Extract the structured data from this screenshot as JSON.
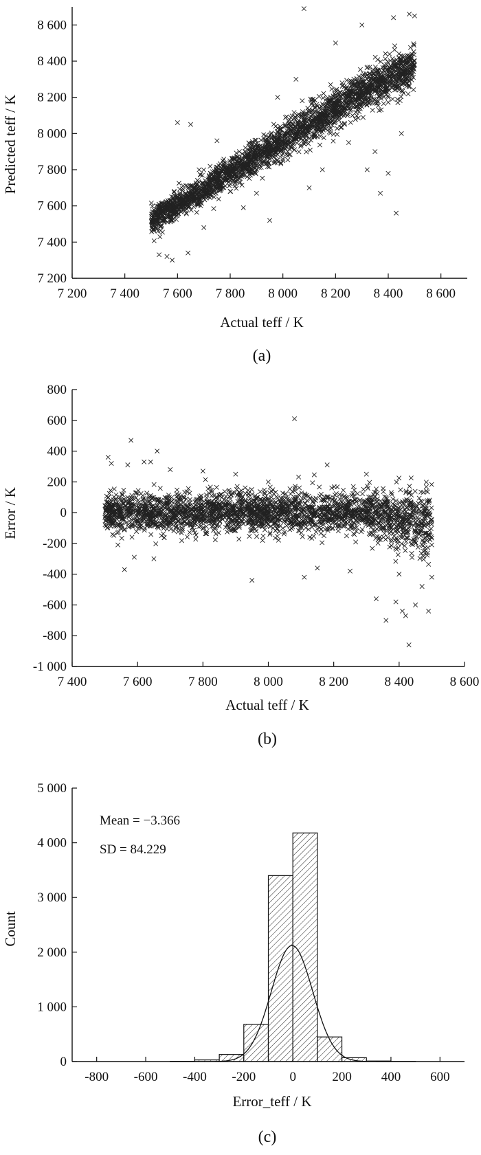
{
  "chart_data": [
    {
      "panel": "(a)",
      "type": "scatter",
      "xlabel": "Actual teff / K",
      "ylabel": "Predicted teff / K",
      "xlim": [
        7200,
        8700
      ],
      "ylim": [
        7200,
        8700
      ],
      "xticks": [
        "7 200",
        "7 400",
        "7 600",
        "7 800",
        "8 000",
        "8 200",
        "8 400",
        "8 600"
      ],
      "yticks": [
        "7 200",
        "7 400",
        "7 600",
        "7 800",
        "8 000",
        "8 200",
        "8 400",
        "8 600"
      ],
      "marker": "x",
      "actual_range": [
        7500,
        8500
      ],
      "grid": false,
      "points": [
        [
          7510,
          7470
        ],
        [
          7520,
          7560
        ],
        [
          7530,
          7330
        ],
        [
          7560,
          7320
        ],
        [
          7580,
          7300
        ],
        [
          7600,
          8060
        ],
        [
          7620,
          7600
        ],
        [
          7640,
          7340
        ],
        [
          7650,
          8050
        ],
        [
          7700,
          7480
        ],
        [
          7750,
          7960
        ],
        [
          7800,
          7680
        ],
        [
          7850,
          7590
        ],
        [
          7900,
          7670
        ],
        [
          7950,
          7520
        ],
        [
          7980,
          8200
        ],
        [
          8000,
          7850
        ],
        [
          8050,
          8300
        ],
        [
          8080,
          8690
        ],
        [
          8100,
          7700
        ],
        [
          8150,
          7800
        ],
        [
          8200,
          8500
        ],
        [
          8250,
          7950
        ],
        [
          8300,
          8600
        ],
        [
          8320,
          7800
        ],
        [
          8350,
          7900
        ],
        [
          8370,
          7670
        ],
        [
          8400,
          7780
        ],
        [
          8420,
          8640
        ],
        [
          8430,
          7560
        ],
        [
          8450,
          8000
        ],
        [
          8480,
          8660
        ],
        [
          8500,
          8650
        ]
      ],
      "trend": [
        [
          7500,
          7520
        ],
        [
          7700,
          7690
        ],
        [
          7900,
          7870
        ],
        [
          8100,
          8050
        ],
        [
          8300,
          8230
        ],
        [
          8500,
          8370
        ]
      ]
    },
    {
      "panel": "(b)",
      "type": "scatter",
      "xlabel": "Actual teff / K",
      "ylabel": "Error / K",
      "xlim": [
        7400,
        8600
      ],
      "ylim": [
        -1000,
        800
      ],
      "xticks": [
        "7 400",
        "7 600",
        "7 800",
        "8 000",
        "8 200",
        "8 400",
        "8 600"
      ],
      "yticks": [
        "-1 000",
        "-800",
        "-600",
        "-400",
        "-200",
        "0",
        "200",
        "400",
        "600",
        "800"
      ],
      "marker": "x",
      "grid": false,
      "points": [
        [
          7510,
          360
        ],
        [
          7520,
          320
        ],
        [
          7540,
          -210
        ],
        [
          7560,
          -370
        ],
        [
          7570,
          310
        ],
        [
          7580,
          470
        ],
        [
          7590,
          -290
        ],
        [
          7620,
          330
        ],
        [
          7640,
          330
        ],
        [
          7650,
          -300
        ],
        [
          7660,
          400
        ],
        [
          7700,
          280
        ],
        [
          7800,
          270
        ],
        [
          7900,
          250
        ],
        [
          7950,
          -440
        ],
        [
          8000,
          200
        ],
        [
          8080,
          610
        ],
        [
          8110,
          -420
        ],
        [
          8150,
          -360
        ],
        [
          8180,
          310
        ],
        [
          8250,
          -380
        ],
        [
          8300,
          250
        ],
        [
          8330,
          -560
        ],
        [
          8360,
          -700
        ],
        [
          8390,
          -580
        ],
        [
          8400,
          -400
        ],
        [
          8410,
          -640
        ],
        [
          8420,
          -670
        ],
        [
          8430,
          -860
        ],
        [
          8450,
          -600
        ],
        [
          8470,
          -480
        ],
        [
          8490,
          -640
        ],
        [
          8500,
          -420
        ]
      ]
    },
    {
      "panel": "(c)",
      "type": "bar",
      "xlabel": "Error_teff / K",
      "ylabel": "Count",
      "xlim": [
        -900,
        700
      ],
      "ylim": [
        0,
        5000
      ],
      "xticks": [
        "-800",
        "-600",
        "-400",
        "-200",
        "0",
        "200",
        "400",
        "600"
      ],
      "yticks": [
        "0",
        "1 000",
        "2 000",
        "3 000",
        "4 000",
        "5 000"
      ],
      "bin_width": 100,
      "bin_edges": [
        -500,
        -400,
        -300,
        -200,
        -100,
        0,
        100,
        200,
        300,
        400,
        500
      ],
      "counts": [
        5,
        30,
        130,
        680,
        3400,
        4180,
        450,
        70,
        10,
        3
      ],
      "fit": {
        "type": "normal",
        "mean": -3.366,
        "sd": 84.229
      },
      "annotations": [
        "Mean = −3.366",
        "SD = 84.229"
      ],
      "grid": false
    }
  ]
}
